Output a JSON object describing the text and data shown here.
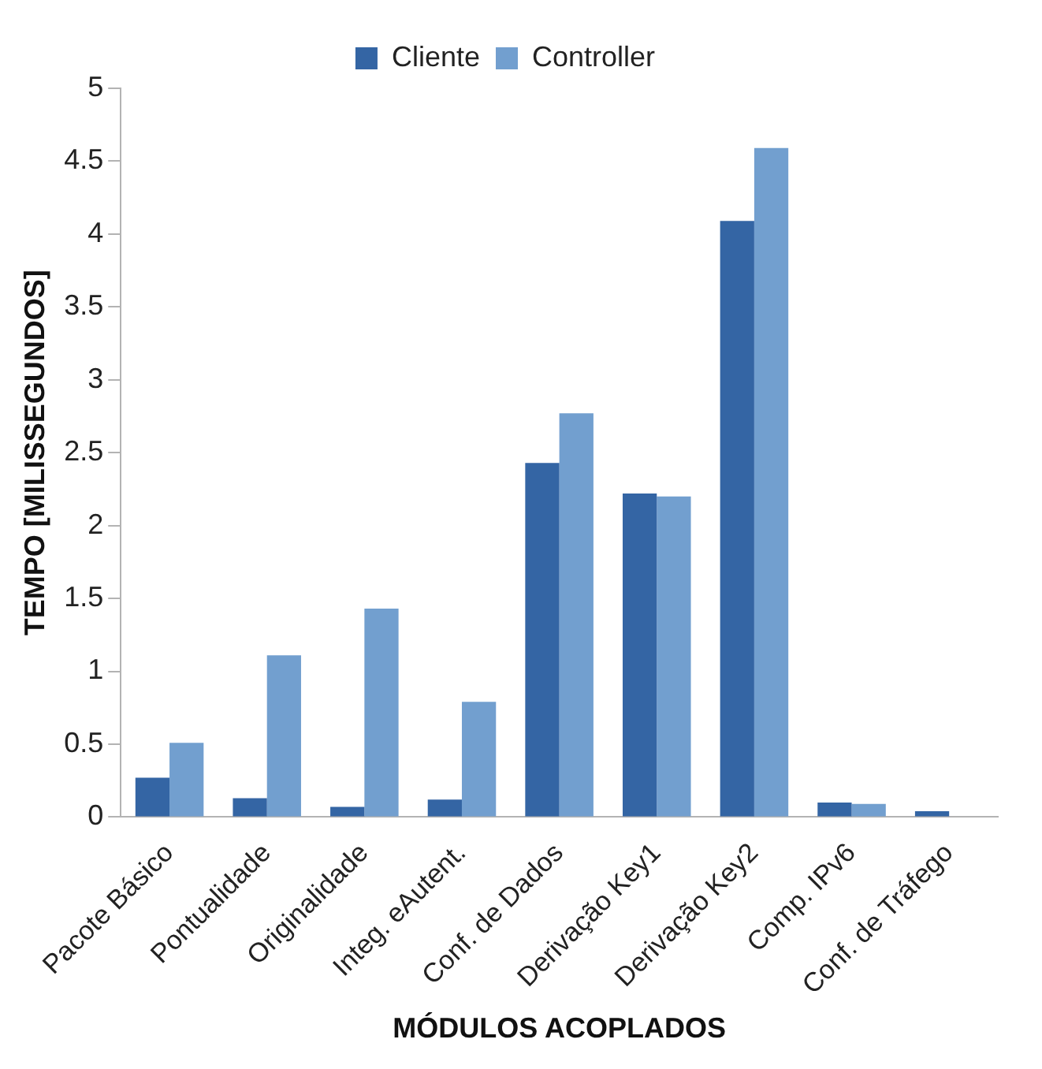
{
  "chart_data": {
    "type": "bar",
    "xlabel": "MÓDULOS ACOPLADOS",
    "ylabel": "TEMPO [MILISSEGUNDOS]",
    "categories": [
      "Pacote Básico",
      "Pontualidade",
      "Originalidade",
      "Integ. eAutent.",
      "Conf. de Dados",
      "Derivação Key1",
      "Derivação Key2",
      "Comp. IPv6",
      "Conf. de Tráfego"
    ],
    "series": [
      {
        "name": "Cliente",
        "color": "#3465a4",
        "values": [
          0.27,
          0.13,
          0.07,
          0.12,
          2.43,
          2.22,
          4.09,
          0.1,
          0.04
        ]
      },
      {
        "name": "Controller",
        "color": "#729fcf",
        "values": [
          0.51,
          1.11,
          1.43,
          0.79,
          2.77,
          2.2,
          4.59,
          0.09,
          0
        ]
      }
    ],
    "ylim": [
      0,
      5
    ],
    "yticks": [
      0,
      0.5,
      1,
      1.5,
      2,
      2.5,
      3,
      3.5,
      4,
      4.5,
      5
    ],
    "grid": false,
    "legend": "top"
  }
}
